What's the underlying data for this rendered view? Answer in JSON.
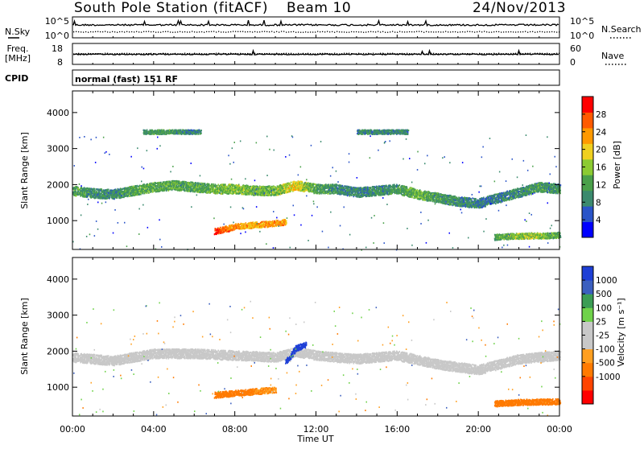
{
  "header": {
    "station": "South Pole Station (fitACF)",
    "beam": "Beam 10",
    "date": "24/Nov/2013"
  },
  "noise_panel": {
    "left_label_1": "N.Sky",
    "left_tick_hi": "10^5",
    "left_tick_lo": "10^0",
    "right_tick_hi": "10^5",
    "right_tick_lo": "10^0",
    "right_label": "N.Search"
  },
  "freq_panel": {
    "label_1": "Freq.",
    "label_2": "[MHz]",
    "tick_18": "18",
    "tick_8": "8",
    "right_tick_60": "60",
    "right_tick_0": "0",
    "right_label": "Nave"
  },
  "cpid_panel": {
    "label": "CPID",
    "value": "normal (fast) 151 RF"
  },
  "colors": {
    "power_scale": [
      "#0000ff",
      "#2a54c8",
      "#3b8a6e",
      "#4aa04a",
      "#8ccb32",
      "#f0d020",
      "#ff9900",
      "#ff5a00",
      "#ff0000"
    ],
    "velocity_scale": [
      "#ff0000",
      "#ff4400",
      "#ff7a00",
      "#ff9f20",
      "#c8c8c8",
      "#c8c8c8",
      "#6fd24a",
      "#3c9d55",
      "#3b5fbf",
      "#1e3fd6"
    ]
  },
  "chart_data": [
    {
      "type": "heatmap",
      "panel": "power",
      "xlabel": "",
      "ylabel": "Slant Range [km]",
      "x_ticks": [
        "00:00",
        "04:00",
        "08:00",
        "12:00",
        "16:00",
        "20:00",
        "00:00"
      ],
      "y_ticks": [
        "1000",
        "2000",
        "3000",
        "4000"
      ],
      "ylim": [
        200,
        4600
      ],
      "colorbar_label": "Power [dB]",
      "colorbar_ticks": [
        "4",
        "8",
        "12",
        "16",
        "20",
        "24",
        "28"
      ],
      "colorbar_range": [
        0,
        32
      ],
      "bands": [
        {
          "name": "main",
          "t": [
            0,
            1,
            2,
            3,
            4,
            5,
            6,
            7,
            8,
            9,
            10,
            11,
            12,
            13,
            14,
            15,
            16,
            17,
            18,
            19,
            20,
            21,
            22,
            23,
            24
          ],
          "r": [
            1850,
            1780,
            1750,
            1850,
            1950,
            2000,
            1950,
            1900,
            1900,
            1850,
            1850,
            2000,
            1900,
            1900,
            1800,
            1850,
            1900,
            1750,
            1650,
            1550,
            1500,
            1650,
            1800,
            1950,
            1900
          ],
          "p": [
            12,
            10,
            9,
            12,
            13,
            13,
            12,
            14,
            15,
            14,
            14,
            20,
            12,
            10,
            9,
            10,
            11,
            14,
            11,
            10,
            8,
            9,
            10,
            11,
            10
          ]
        },
        {
          "name": "near",
          "t": [
            7,
            7.5,
            8,
            8.5,
            9,
            9.5,
            10,
            10.5
          ],
          "r": [
            720,
            780,
            850,
            880,
            900,
            920,
            950,
            980
          ],
          "p": [
            30,
            26,
            24,
            22,
            22,
            23,
            24,
            22
          ]
        },
        {
          "name": "tail",
          "t": [
            20.8,
            21.5,
            22.5,
            23.5,
            24
          ],
          "r": [
            560,
            580,
            600,
            600,
            620
          ],
          "p": [
            12,
            14,
            16,
            14,
            12
          ]
        },
        {
          "name": "far1",
          "t": [
            3.5,
            4.5,
            5.5,
            6.3
          ],
          "r": [
            3480,
            3480,
            3480,
            3480
          ],
          "p": [
            10,
            12,
            10,
            9
          ]
        },
        {
          "name": "far2",
          "t": [
            14,
            15,
            16.5
          ],
          "r": [
            3480,
            3480,
            3480
          ],
          "p": [
            9,
            10,
            9
          ]
        }
      ]
    },
    {
      "type": "heatmap",
      "panel": "velocity",
      "xlabel": "Time UT",
      "ylabel": "Slant Range [km]",
      "x_ticks": [
        "00:00",
        "04:00",
        "08:00",
        "12:00",
        "16:00",
        "20:00",
        "00:00"
      ],
      "y_ticks": [
        "1000",
        "2000",
        "3000",
        "4000"
      ],
      "ylim": [
        200,
        4600
      ],
      "colorbar_label": "Velocity [m s⁻¹]",
      "colorbar_ticks": [
        "1000",
        "500",
        "100",
        "25",
        "-25",
        "-100",
        "-500",
        "-1000"
      ],
      "colorbar_range": [
        -1000,
        1000
      ],
      "bands": [
        {
          "name": "main",
          "t": [
            0,
            2,
            4,
            6,
            8,
            10,
            11,
            12,
            14,
            16,
            18,
            20,
            22,
            24
          ],
          "r": [
            1850,
            1750,
            1950,
            1950,
            1900,
            1850,
            2000,
            1900,
            1800,
            1900,
            1650,
            1500,
            1800,
            1900
          ],
          "v": [
            0,
            0,
            0,
            0,
            0,
            0,
            0,
            0,
            0,
            0,
            0,
            0,
            0,
            0
          ]
        },
        {
          "name": "near",
          "t": [
            7,
            8,
            9,
            10
          ],
          "r": [
            800,
            850,
            900,
            950
          ],
          "v": [
            -200,
            -150,
            -100,
            -100
          ]
        },
        {
          "name": "loop",
          "t": [
            10.5,
            11,
            11.5
          ],
          "r": [
            1700,
            2100,
            2200
          ],
          "v": [
            600,
            800,
            900
          ]
        },
        {
          "name": "tail",
          "t": [
            20.8,
            22,
            24
          ],
          "r": [
            560,
            600,
            620
          ],
          "v": [
            -200,
            -200,
            -200
          ]
        }
      ]
    }
  ]
}
